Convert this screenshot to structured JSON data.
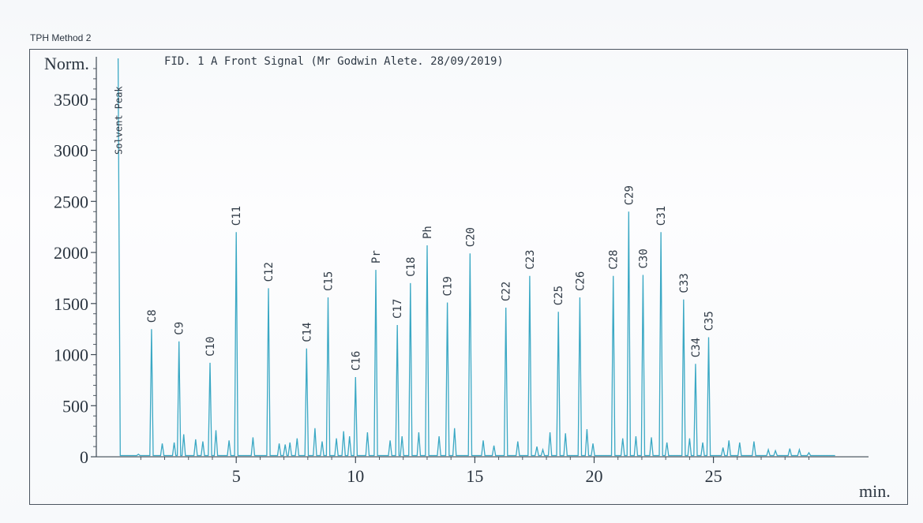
{
  "header": {
    "method": "TPH Method 2"
  },
  "chart_data": {
    "type": "line",
    "signal": "FID. 1 A Front Signal (Mr Godwin Alete. 28/09/2019)",
    "ylabel": "Norm.",
    "xlabel": "min.",
    "xlim": [
      -0.5,
      31.5
    ],
    "ylim": [
      -100,
      3900
    ],
    "xticks": [
      {
        "value": 5,
        "label": "5"
      },
      {
        "value": 10,
        "label": "10"
      },
      {
        "value": 15,
        "label": "15"
      },
      {
        "value": 20,
        "label": "20"
      },
      {
        "value": 25,
        "label": "25"
      }
    ],
    "yticks": [
      {
        "value": 0,
        "label": "0"
      },
      {
        "value": 500,
        "label": "500"
      },
      {
        "value": 1000,
        "label": "1000"
      },
      {
        "value": 1500,
        "label": "1500"
      },
      {
        "value": 2000,
        "label": "2000"
      },
      {
        "value": 2500,
        "label": "2500"
      },
      {
        "value": 3000,
        "label": "3000"
      },
      {
        "value": 3500,
        "label": "3500"
      }
    ],
    "color": "#3aa8c4",
    "baseline": 12,
    "trace_end": 30.1,
    "labeled_peaks": [
      {
        "label": "Solvent Peak",
        "x": 0.05,
        "y": 3900
      },
      {
        "label": "C8",
        "x": 1.45,
        "y": 1250
      },
      {
        "label": "C9",
        "x": 2.6,
        "y": 1130
      },
      {
        "label": "C10",
        "x": 3.9,
        "y": 920
      },
      {
        "label": "C11",
        "x": 5.0,
        "y": 2200
      },
      {
        "label": "C12",
        "x": 6.35,
        "y": 1650
      },
      {
        "label": "C14",
        "x": 7.95,
        "y": 1060
      },
      {
        "label": "C15",
        "x": 8.85,
        "y": 1560
      },
      {
        "label": "C16",
        "x": 10.0,
        "y": 780
      },
      {
        "label": "Pr",
        "x": 10.85,
        "y": 1830
      },
      {
        "label": "C17",
        "x": 11.75,
        "y": 1290
      },
      {
        "label": "C18",
        "x": 12.3,
        "y": 1700
      },
      {
        "label": "Ph",
        "x": 13.0,
        "y": 2070
      },
      {
        "label": "C19",
        "x": 13.85,
        "y": 1510
      },
      {
        "label": "C20",
        "x": 14.8,
        "y": 1990
      },
      {
        "label": "C22",
        "x": 16.3,
        "y": 1460
      },
      {
        "label": "C23",
        "x": 17.3,
        "y": 1770
      },
      {
        "label": "C25",
        "x": 18.5,
        "y": 1420
      },
      {
        "label": "C26",
        "x": 19.4,
        "y": 1560
      },
      {
        "label": "C28",
        "x": 20.8,
        "y": 1770
      },
      {
        "label": "C29",
        "x": 21.45,
        "y": 2400
      },
      {
        "label": "C30",
        "x": 22.05,
        "y": 1780
      },
      {
        "label": "C31",
        "x": 22.8,
        "y": 2200
      },
      {
        "label": "C33",
        "x": 23.75,
        "y": 1540
      },
      {
        "label": "C34",
        "x": 24.25,
        "y": 910
      },
      {
        "label": "C35",
        "x": 24.8,
        "y": 1170
      }
    ],
    "minor_peaks": [
      [
        0.9,
        25
      ],
      [
        1.9,
        130
      ],
      [
        2.4,
        140
      ],
      [
        2.8,
        220
      ],
      [
        3.3,
        170
      ],
      [
        3.6,
        150
      ],
      [
        4.15,
        260
      ],
      [
        4.7,
        160
      ],
      [
        5.7,
        190
      ],
      [
        6.8,
        130
      ],
      [
        7.05,
        120
      ],
      [
        7.25,
        140
      ],
      [
        7.55,
        180
      ],
      [
        8.3,
        280
      ],
      [
        8.6,
        150
      ],
      [
        9.2,
        180
      ],
      [
        9.5,
        250
      ],
      [
        9.75,
        200
      ],
      [
        10.5,
        240
      ],
      [
        11.45,
        160
      ],
      [
        11.95,
        200
      ],
      [
        12.65,
        240
      ],
      [
        13.5,
        200
      ],
      [
        14.15,
        280
      ],
      [
        15.35,
        160
      ],
      [
        15.8,
        110
      ],
      [
        16.8,
        150
      ],
      [
        17.6,
        100
      ],
      [
        17.85,
        70
      ],
      [
        18.15,
        240
      ],
      [
        18.8,
        230
      ],
      [
        19.7,
        270
      ],
      [
        19.95,
        130
      ],
      [
        21.2,
        180
      ],
      [
        21.75,
        200
      ],
      [
        22.4,
        190
      ],
      [
        23.05,
        140
      ],
      [
        24.0,
        180
      ],
      [
        24.55,
        140
      ],
      [
        25.4,
        90
      ],
      [
        25.65,
        160
      ],
      [
        26.1,
        140
      ],
      [
        26.7,
        150
      ],
      [
        27.3,
        70
      ],
      [
        27.6,
        60
      ],
      [
        28.2,
        80
      ],
      [
        28.6,
        70
      ],
      [
        29.0,
        40
      ]
    ]
  }
}
